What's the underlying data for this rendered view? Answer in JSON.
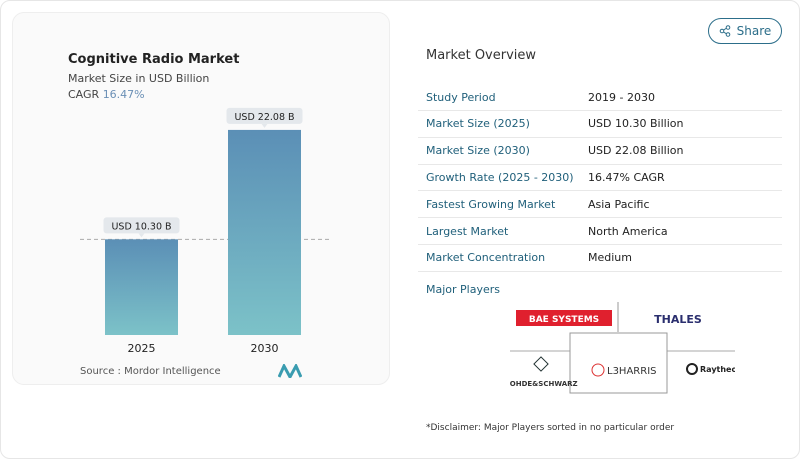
{
  "share_label": "Share",
  "left": {
    "title": "Cognitive Radio Market",
    "subtitle": "Market Size in USD Billion",
    "cagr_label": "CAGR",
    "cagr_value": "16.47%",
    "source": "Source :  Mordor Intelligence"
  },
  "chart_data": {
    "type": "bar",
    "categories": [
      "2025",
      "2030"
    ],
    "values": [
      10.3,
      22.08
    ],
    "labels": [
      "USD 10.30 B",
      "USD 22.08 B"
    ],
    "ylim": [
      0,
      25.3
    ],
    "title": "Cognitive Radio Market",
    "ylabel": "Market Size in USD Billion",
    "colors": [
      "#5b8fb6",
      "#7cc2c8"
    ]
  },
  "overview": {
    "title": "Market Overview",
    "rows": [
      {
        "k": "Study Period",
        "v": "2019 - 2030"
      },
      {
        "k": "Market Size (2025)",
        "v": "USD 10.30 Billion"
      },
      {
        "k": "Market Size (2030)",
        "v": "USD 22.08 Billion"
      },
      {
        "k": "Growth Rate (2025 - 2030)",
        "v": "16.47% CAGR"
      },
      {
        "k": "Fastest Growing Market",
        "v": "Asia Pacific"
      },
      {
        "k": "Largest Market",
        "v": "North America"
      },
      {
        "k": "Market Concentration",
        "v": "Medium"
      }
    ]
  },
  "players": {
    "title": "Major Players",
    "names": [
      "BAE SYSTEMS",
      "THALES",
      "ROHDE&SCHWARZ",
      "L3HARRIS",
      "Raytheon"
    ]
  },
  "disclaimer": "*Disclaimer: Major Players sorted in no particular order"
}
